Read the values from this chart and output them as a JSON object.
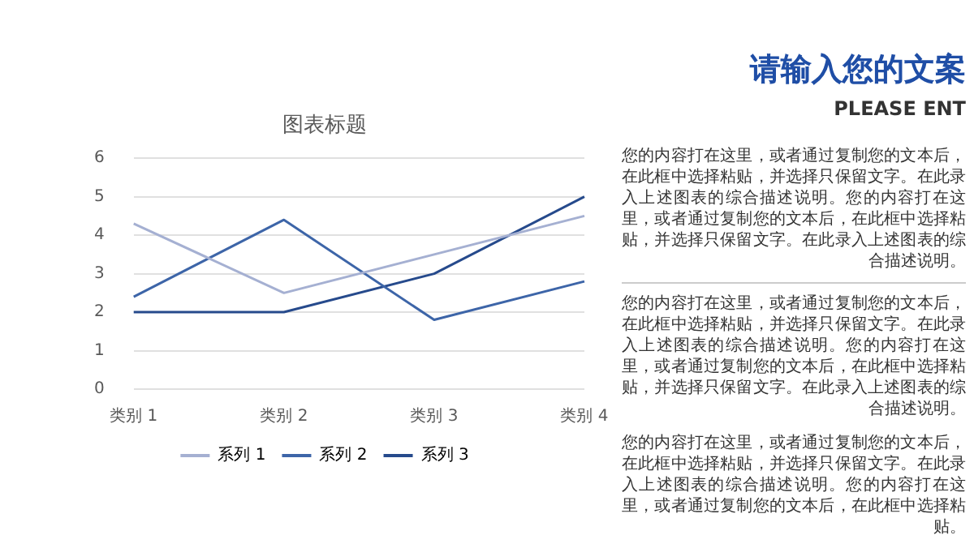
{
  "chart_data": {
    "type": "line",
    "title": "图表标题",
    "categories": [
      "类别 1",
      "类别 2",
      "类别 3",
      "类别 4"
    ],
    "series": [
      {
        "name": "系列 1",
        "color": "#a5b0d2",
        "values": [
          4.3,
          2.5,
          3.5,
          4.5
        ]
      },
      {
        "name": "系列 2",
        "color": "#3d65a8",
        "values": [
          2.4,
          4.4,
          1.8,
          2.8
        ]
      },
      {
        "name": "系列 3",
        "color": "#264a8c",
        "values": [
          2,
          2,
          3,
          5
        ]
      }
    ],
    "ylim": [
      0,
      6
    ],
    "yticks": [
      0,
      1,
      2,
      3,
      4,
      5,
      6
    ],
    "grid": "y",
    "legend": "bottom",
    "marker": "none",
    "line_style": "solid",
    "annotations": [
      "请输入您的文案",
      "PLEASE ENT",
      "您的内容打在这里，或者通过复制您的文本后，在此框中选择粘贴，并选择只保留文字。在此录入上述图表的综合描述说明。您的内容打在这里，或者通过复制您的文本后，在此框中选择粘贴，并选择只保留文字。在此录入上述图表的综合描述说明。",
      "您的内容打在这里，或者通过复制您的文本后，在此框中选择粘贴，并选择只保留文字。在此录入上述图表的综合描述说明。您的内容打在这里，或者通过复制您的文本后，在此框中选择粘贴，并选择只保留文字。在此录入上述图表的综合描述说明。",
      "您的内容打在这里，或者通过复制您的文本后，在此框中选择粘贴，并选择只保留文字。在此录入上述图表的综合描述说明。您的内容打在这里，或者通过复制您的文本后，在此框中选择粘贴。"
    ]
  }
}
